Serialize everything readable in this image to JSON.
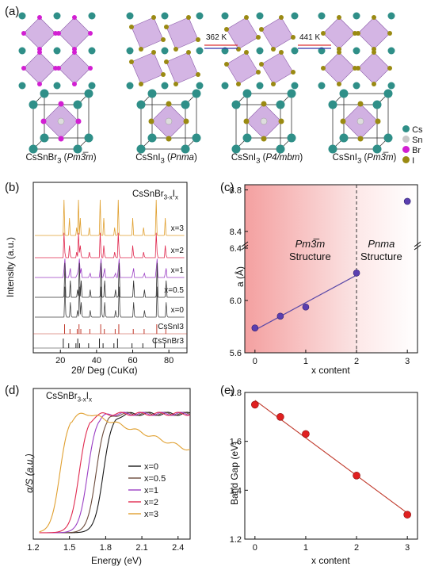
{
  "panel_a": {
    "label": "(a)",
    "transitions": [
      "362 K",
      "441 K"
    ],
    "captions": [
      {
        "formula": "CsSnBr",
        "sub": "3",
        "phase": "Pm3̅m"
      },
      {
        "formula": "CsSnI",
        "sub": "3",
        "phase": "Pnma"
      },
      {
        "formula": "CsSnI",
        "sub": "3",
        "phase": "P4/mbm"
      },
      {
        "formula": "CsSnI",
        "sub": "3",
        "phase": "Pm3̅m"
      }
    ],
    "legend": [
      {
        "label": "Cs",
        "color": "#2f8f88"
      },
      {
        "label": "Sn",
        "color": "#c8c8c8"
      },
      {
        "label": "Br",
        "color": "#d21fd2"
      },
      {
        "label": "I",
        "color": "#9a8a12"
      }
    ]
  },
  "panel_b": {
    "label": "(b)",
    "title": "CsSnBr3-xIx",
    "ylabel": "Intensity (a.u.)",
    "xlabel": "2θ/ Deg (CuKα)",
    "xticks": [
      "20",
      "40",
      "60",
      "80"
    ],
    "traces": [
      "x=3",
      "x=2",
      "x=1",
      "x=0.5",
      "x=0",
      "CsSnI3",
      "CsSnBr3"
    ]
  },
  "panel_c": {
    "label": "(c)",
    "ylabel": "a (Å)",
    "xlabel": "x content",
    "region_left": {
      "phase": "Pm3̅m",
      "word": "Structure"
    },
    "region_right": {
      "phase": "Pnma",
      "word": "Structure"
    },
    "yticks_upper": [
      "8.8",
      "8.4"
    ],
    "yticks_lower": [
      "6.4",
      "6.0",
      "5.6"
    ],
    "xticks": [
      "0",
      "1",
      "2",
      "3"
    ]
  },
  "panel_d": {
    "label": "(d)",
    "title": "CsSnBr3-xIx",
    "ylabel": "α/S (a.u.)",
    "xlabel": "Energy (eV)",
    "xticks": [
      "1.2",
      "1.5",
      "1.8",
      "2.1",
      "2.4"
    ],
    "legend": [
      {
        "label": "x=0",
        "color": "#1a1a1a"
      },
      {
        "label": "x=0.5",
        "color": "#6b4a3a"
      },
      {
        "label": "x=1",
        "color": "#9b3fc4"
      },
      {
        "label": "x=2",
        "color": "#e0294f"
      },
      {
        "label": "x=3",
        "color": "#e0a030"
      }
    ]
  },
  "panel_e": {
    "label": "(e)",
    "ylabel": "Band Gap (eV)",
    "xlabel": "x content",
    "yticks": [
      "1.8",
      "1.6",
      "1.4",
      "1.2"
    ],
    "xticks": [
      "0",
      "1",
      "2",
      "3"
    ]
  },
  "chart_data": [
    {
      "type": "line",
      "panel": "c",
      "xlabel": "x content",
      "ylabel": "a (Å)",
      "x": [
        0,
        0.5,
        1,
        2,
        3
      ],
      "series": [
        {
          "values": [
            5.79,
            5.88,
            5.95,
            6.21,
            8.69
          ]
        }
      ],
      "xlim": [
        -0.2,
        3.2
      ],
      "ylim_lower": [
        5.6,
        6.4
      ],
      "ylim_upper": [
        8.3,
        8.85
      ]
    },
    {
      "type": "scatter",
      "panel": "e",
      "xlabel": "x content",
      "ylabel": "Band Gap (eV)",
      "x": [
        0,
        0.5,
        1,
        2,
        3
      ],
      "series": [
        {
          "values": [
            1.75,
            1.7,
            1.63,
            1.46,
            1.3
          ]
        }
      ],
      "xlim": [
        -0.2,
        3.2
      ],
      "ylim": [
        1.2,
        1.8
      ]
    },
    {
      "type": "line",
      "panel": "d",
      "xlabel": "Energy (eV)",
      "ylabel": "α/S (a.u.)",
      "xlim": [
        1.2,
        2.5
      ],
      "series": [
        {
          "name": "x=0",
          "onset": 1.78
        },
        {
          "name": "x=0.5",
          "onset": 1.72
        },
        {
          "name": "x=1",
          "onset": 1.65
        },
        {
          "name": "x=2",
          "onset": 1.58
        },
        {
          "name": "x=3",
          "onset": 1.42
        }
      ]
    }
  ]
}
